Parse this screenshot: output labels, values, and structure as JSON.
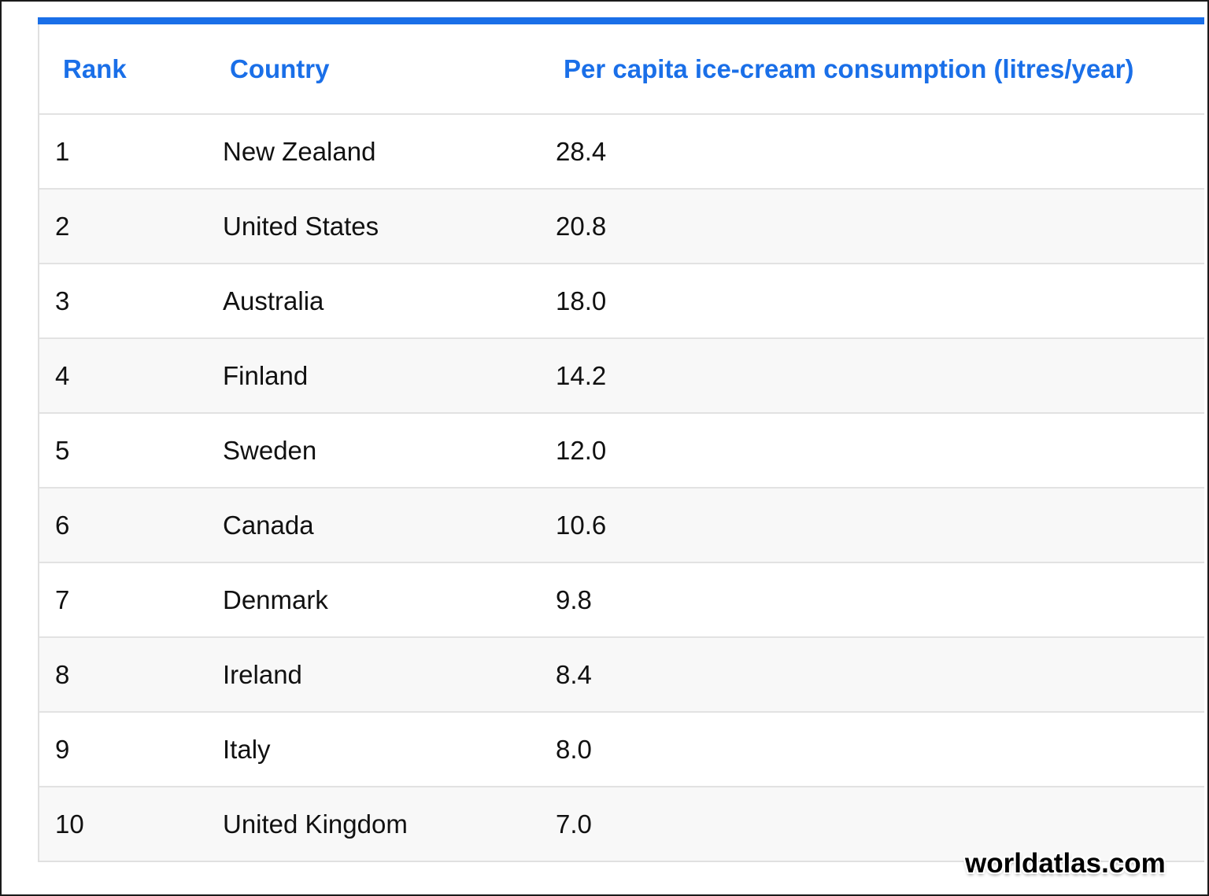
{
  "table": {
    "accent_color": "#1a6fe8",
    "columns": [
      {
        "key": "rank",
        "label": "Rank"
      },
      {
        "key": "country",
        "label": "Country"
      },
      {
        "key": "value",
        "label": "Per capita ice-cream consumption (litres/year)"
      }
    ],
    "rows": [
      {
        "rank": "1",
        "country": "New Zealand",
        "value": "28.4"
      },
      {
        "rank": "2",
        "country": "United States",
        "value": "20.8"
      },
      {
        "rank": "3",
        "country": "Australia",
        "value": "18.0"
      },
      {
        "rank": "4",
        "country": "Finland",
        "value": "14.2"
      },
      {
        "rank": "5",
        "country": "Sweden",
        "value": "12.0"
      },
      {
        "rank": "6",
        "country": "Canada",
        "value": "10.6"
      },
      {
        "rank": "7",
        "country": "Denmark",
        "value": "9.8"
      },
      {
        "rank": "8",
        "country": "Ireland",
        "value": "8.4"
      },
      {
        "rank": "9",
        "country": "Italy",
        "value": "8.0"
      },
      {
        "rank": "10",
        "country": "United Kingdom",
        "value": "7.0"
      }
    ]
  },
  "watermark": {
    "text": "worldatlas.com"
  }
}
